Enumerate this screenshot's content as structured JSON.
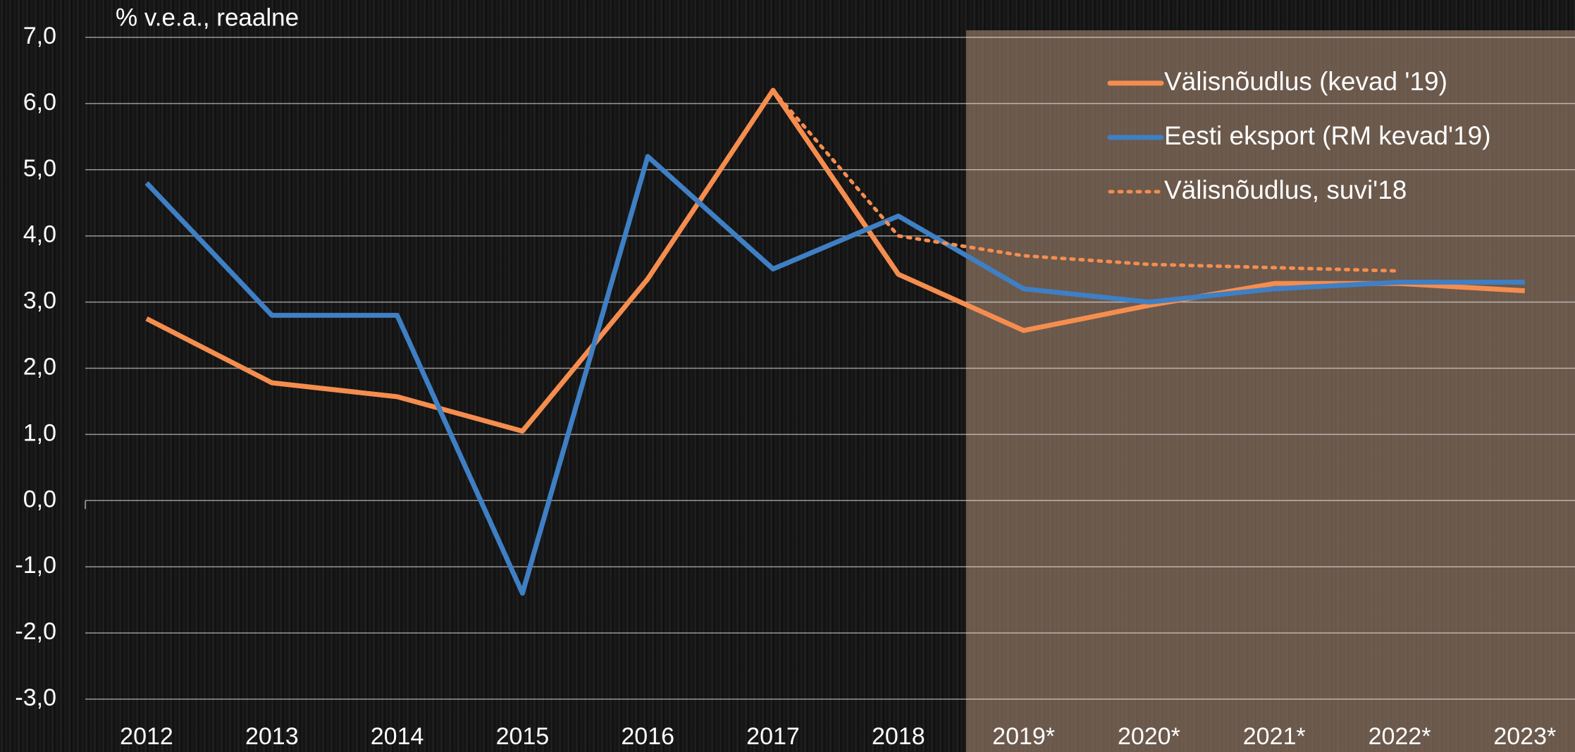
{
  "chart_data": {
    "type": "line",
    "ylabel": "% v.e.a., reaalne",
    "categories": [
      "2012",
      "2013",
      "2014",
      "2015",
      "2016",
      "2017",
      "2018",
      "2019*",
      "2020*",
      "2021*",
      "2022*",
      "2023*"
    ],
    "series": [
      {
        "name": "Välisnõudlus (kevad '19)",
        "color": "#f58d4e",
        "style": "solid",
        "values": [
          2.75,
          1.78,
          1.57,
          1.05,
          3.35,
          6.2,
          3.42,
          2.57,
          2.95,
          3.28,
          3.28,
          3.17
        ]
      },
      {
        "name": "Eesti eksport (RM kevad'19)",
        "color": "#3f7fc4",
        "style": "solid",
        "values": [
          4.8,
          2.8,
          2.8,
          -1.4,
          5.2,
          3.5,
          4.3,
          3.2,
          3.0,
          3.2,
          3.3,
          3.3
        ]
      },
      {
        "name": "Välisnõudlus, suvi'18",
        "color": "#f58d4e",
        "style": "dotted",
        "values": [
          null,
          null,
          null,
          null,
          null,
          6.2,
          4.0,
          3.7,
          3.57,
          3.52,
          3.47,
          null
        ]
      }
    ],
    "ylim": [
      -3,
      7
    ],
    "yticks": [
      {
        "value": -3,
        "label": "-3,0"
      },
      {
        "value": -2,
        "label": "-2,0"
      },
      {
        "value": -1,
        "label": "-1,0"
      },
      {
        "value": 0,
        "label": "0,0"
      },
      {
        "value": 1,
        "label": "1,0"
      },
      {
        "value": 2,
        "label": "2,0"
      },
      {
        "value": 3,
        "label": "3,0"
      },
      {
        "value": 4,
        "label": "4,0"
      },
      {
        "value": 5,
        "label": "5,0"
      },
      {
        "value": 6,
        "label": "6,0"
      },
      {
        "value": 7,
        "label": "7,0"
      }
    ],
    "grid": true,
    "legend": "upper right"
  }
}
